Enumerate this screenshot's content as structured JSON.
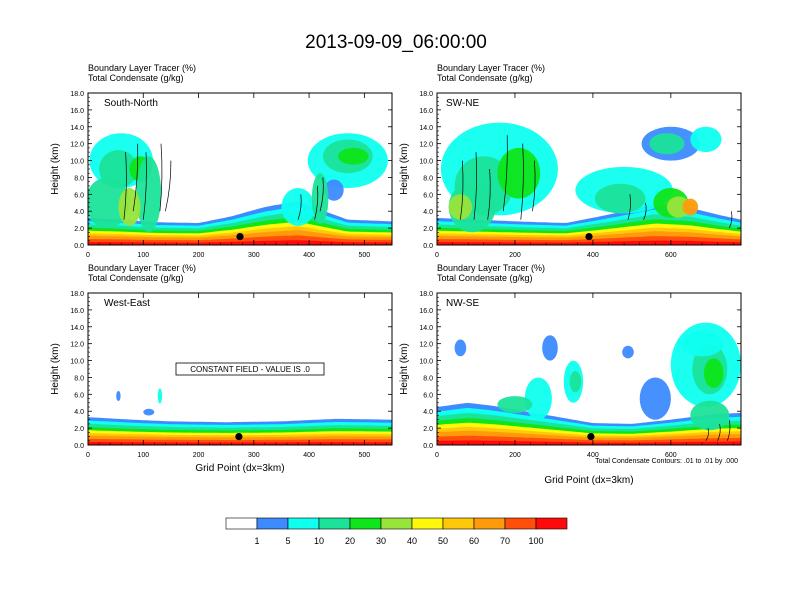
{
  "title": "2013-09-09_06:00:00",
  "colors": {
    "levels": [
      "#ffffff",
      "#3d8bff",
      "#0ffff0",
      "#1be39a",
      "#0ee51a",
      "#98e43b",
      "#fff80a",
      "#ffc80a",
      "#ff9a0a",
      "#ff4f0a",
      "#ff0a0a"
    ],
    "contour": "#000000",
    "marker": "#000000"
  },
  "colorbar": {
    "labels": [
      "1",
      "5",
      "10",
      "20",
      "30",
      "40",
      "50",
      "60",
      "70",
      "100"
    ]
  },
  "chart_data": [
    {
      "type": "heatmap",
      "subtitle_line1": "Boundary Layer Tracer   (%)",
      "subtitle_line2": "Total Condensate   (g/kg)",
      "panel_label": "South-North",
      "ylabel": "Height (km)",
      "xlabel": "",
      "ylim": [
        0,
        18
      ],
      "yticks": [
        "0.0",
        "2.0",
        "4.0",
        "6.0",
        "8.0",
        "10.0",
        "12.0",
        "14.0",
        "16.0",
        "18.0"
      ],
      "xlim": [
        0,
        550
      ],
      "xticks": [
        {
          "value": 0,
          "label": "0"
        },
        {
          "value": 100,
          "label": "100"
        },
        {
          "value": 200,
          "label": "200"
        },
        {
          "value": 300,
          "label": "300"
        },
        {
          "value": 400,
          "label": "400"
        },
        {
          "value": 500,
          "label": "500"
        }
      ],
      "marker_x": 275,
      "marker_y": 1.0,
      "pbl_top": [
        [
          0,
          3.2
        ],
        [
          60,
          3.0
        ],
        [
          120,
          2.7
        ],
        [
          200,
          2.6
        ],
        [
          260,
          3.4
        ],
        [
          320,
          4.5
        ],
        [
          380,
          5.2
        ],
        [
          420,
          4.2
        ],
        [
          470,
          3.0
        ],
        [
          550,
          2.8
        ]
      ],
      "clouds": [
        {
          "x": 60,
          "y": 10.0,
          "w": 115,
          "h": 6.5,
          "level": 2
        },
        {
          "x": 55,
          "y": 9.0,
          "w": 70,
          "h": 4.5,
          "level": 3
        },
        {
          "x": 95,
          "y": 9.0,
          "w": 40,
          "h": 3.0,
          "level": 4
        },
        {
          "x": 110,
          "y": 6.0,
          "w": 45,
          "h": 9.0,
          "level": 3
        },
        {
          "x": 35,
          "y": 5.0,
          "w": 80,
          "h": 6.0,
          "level": 3
        },
        {
          "x": 75,
          "y": 4.5,
          "w": 40,
          "h": 4.5,
          "level": 5
        },
        {
          "x": 470,
          "y": 10.0,
          "w": 145,
          "h": 6.5,
          "level": 2
        },
        {
          "x": 470,
          "y": 10.5,
          "w": 90,
          "h": 4.0,
          "level": 3
        },
        {
          "x": 480,
          "y": 10.5,
          "w": 55,
          "h": 2.0,
          "level": 4
        },
        {
          "x": 445,
          "y": 6.5,
          "w": 35,
          "h": 2.5,
          "level": 1
        },
        {
          "x": 380,
          "y": 4.5,
          "w": 60,
          "h": 4.5,
          "level": 2
        },
        {
          "x": 420,
          "y": 5.5,
          "w": 30,
          "h": 6.0,
          "level": 3
        }
      ],
      "contours": [
        [
          65,
          3
        ],
        [
          68,
          11
        ],
        [
          82,
          4
        ],
        [
          90,
          12
        ],
        [
          100,
          3
        ],
        [
          105,
          11
        ],
        [
          130,
          4
        ],
        [
          132,
          12
        ],
        [
          140,
          4
        ],
        [
          150,
          10
        ],
        [
          380,
          3
        ],
        [
          385,
          6
        ],
        [
          410,
          3
        ],
        [
          415,
          7
        ],
        [
          420,
          4
        ],
        [
          425,
          8
        ]
      ],
      "constant_field_text": ""
    },
    {
      "type": "heatmap",
      "subtitle_line1": "Boundary Layer Tracer   (%)",
      "subtitle_line2": "Total Condensate   (g/kg)",
      "panel_label": "SW-NE",
      "ylabel": "Height (km)",
      "xlabel": "",
      "ylim": [
        0,
        18
      ],
      "yticks": [
        "0.0",
        "2.0",
        "4.0",
        "6.0",
        "8.0",
        "10.0",
        "12.0",
        "14.0",
        "16.0",
        "18.0"
      ],
      "xlim": [
        0,
        780
      ],
      "xticks": [
        {
          "value": 0,
          "label": "0"
        },
        {
          "value": 200,
          "label": "200"
        },
        {
          "value": 400,
          "label": "400"
        },
        {
          "value": 600,
          "label": "600"
        }
      ],
      "marker_x": 390,
      "marker_y": 1.0,
      "pbl_top": [
        [
          0,
          3.2
        ],
        [
          100,
          3.0
        ],
        [
          200,
          2.8
        ],
        [
          330,
          2.6
        ],
        [
          420,
          3.4
        ],
        [
          500,
          4.2
        ],
        [
          560,
          4.8
        ],
        [
          650,
          4.4
        ],
        [
          720,
          3.6
        ],
        [
          780,
          3.0
        ]
      ],
      "clouds": [
        {
          "x": 160,
          "y": 9.0,
          "w": 300,
          "h": 11.0,
          "level": 2
        },
        {
          "x": 120,
          "y": 7.0,
          "w": 150,
          "h": 7.0,
          "level": 3
        },
        {
          "x": 210,
          "y": 8.5,
          "w": 110,
          "h": 6.0,
          "level": 4
        },
        {
          "x": 90,
          "y": 4.5,
          "w": 120,
          "h": 6.0,
          "level": 3
        },
        {
          "x": 60,
          "y": 4.5,
          "w": 60,
          "h": 3.0,
          "level": 5
        },
        {
          "x": 480,
          "y": 6.5,
          "w": 250,
          "h": 5.5,
          "level": 2
        },
        {
          "x": 470,
          "y": 5.5,
          "w": 130,
          "h": 3.5,
          "level": 3
        },
        {
          "x": 600,
          "y": 5.0,
          "w": 90,
          "h": 3.5,
          "level": 4
        },
        {
          "x": 620,
          "y": 4.5,
          "w": 60,
          "h": 2.5,
          "level": 5
        },
        {
          "x": 650,
          "y": 4.5,
          "w": 40,
          "h": 2.0,
          "level": 8
        },
        {
          "x": 600,
          "y": 12.0,
          "w": 150,
          "h": 4.0,
          "level": 1
        },
        {
          "x": 590,
          "y": 12.0,
          "w": 90,
          "h": 2.5,
          "level": 3
        },
        {
          "x": 690,
          "y": 12.5,
          "w": 80,
          "h": 3.0,
          "level": 2
        }
      ],
      "contours": [
        [
          60,
          3
        ],
        [
          65,
          10
        ],
        [
          95,
          3
        ],
        [
          100,
          11
        ],
        [
          130,
          3
        ],
        [
          135,
          9
        ],
        [
          170,
          4
        ],
        [
          180,
          13
        ],
        [
          215,
          3
        ],
        [
          220,
          12
        ],
        [
          245,
          4
        ],
        [
          250,
          10
        ],
        [
          490,
          3
        ],
        [
          495,
          6
        ],
        [
          530,
          3
        ],
        [
          535,
          5
        ],
        [
          750,
          2
        ],
        [
          755,
          4
        ]
      ],
      "constant_field_text": ""
    },
    {
      "type": "heatmap",
      "subtitle_line1": "Boundary Layer Tracer   (%)",
      "subtitle_line2": "Total Condensate   (g/kg)",
      "panel_label": "West-East",
      "ylabel": "Height (km)",
      "xlabel": "Grid Point (dx=3km)",
      "ylim": [
        0,
        18
      ],
      "yticks": [
        "0.0",
        "2.0",
        "4.0",
        "6.0",
        "8.0",
        "10.0",
        "12.0",
        "14.0",
        "16.0",
        "18.0"
      ],
      "xlim": [
        0,
        550
      ],
      "xticks": [
        {
          "value": 0,
          "label": "0"
        },
        {
          "value": 100,
          "label": "100"
        },
        {
          "value": 200,
          "label": "200"
        },
        {
          "value": 300,
          "label": "300"
        },
        {
          "value": 400,
          "label": "400"
        },
        {
          "value": 500,
          "label": "500"
        }
      ],
      "marker_x": 273,
      "marker_y": 1.0,
      "pbl_top": [
        [
          0,
          3.3
        ],
        [
          80,
          3.0
        ],
        [
          150,
          2.8
        ],
        [
          250,
          2.7
        ],
        [
          350,
          2.8
        ],
        [
          450,
          3.1
        ],
        [
          550,
          3.0
        ]
      ],
      "clouds": [
        {
          "x": 55,
          "y": 5.8,
          "w": 8,
          "h": 1.2,
          "level": 1
        },
        {
          "x": 130,
          "y": 5.8,
          "w": 8,
          "h": 1.8,
          "level": 2
        },
        {
          "x": 110,
          "y": 3.9,
          "w": 20,
          "h": 0.8,
          "level": 1
        }
      ],
      "contours": [],
      "constant_field_text": "CONSTANT FIELD - VALUE IS .0"
    },
    {
      "type": "heatmap",
      "subtitle_line1": "Boundary Layer Tracer   (%)",
      "subtitle_line2": "Total Condensate   (g/kg)",
      "panel_label": "NW-SE",
      "ylabel": "Height (km)",
      "xlabel": "Grid Point (dx=3km)",
      "ylim": [
        0,
        18
      ],
      "yticks": [
        "0.0",
        "2.0",
        "4.0",
        "6.0",
        "8.0",
        "10.0",
        "12.0",
        "14.0",
        "16.0",
        "18.0"
      ],
      "xlim": [
        0,
        780
      ],
      "xticks": [
        {
          "value": 0,
          "label": "0"
        },
        {
          "value": 200,
          "label": "200"
        },
        {
          "value": 400,
          "label": "400"
        },
        {
          "value": 600,
          "label": "600"
        }
      ],
      "marker_x": 395,
      "marker_y": 1.0,
      "pbl_top": [
        [
          0,
          4.5
        ],
        [
          80,
          5.0
        ],
        [
          150,
          4.6
        ],
        [
          250,
          3.8
        ],
        [
          400,
          2.6
        ],
        [
          500,
          2.5
        ],
        [
          600,
          3.0
        ],
        [
          700,
          3.6
        ],
        [
          780,
          3.8
        ]
      ],
      "clouds": [
        {
          "x": 290,
          "y": 11.5,
          "w": 40,
          "h": 3.0,
          "level": 1
        },
        {
          "x": 60,
          "y": 11.5,
          "w": 30,
          "h": 2.0,
          "level": 1
        },
        {
          "x": 350,
          "y": 7.5,
          "w": 50,
          "h": 5.0,
          "level": 2
        },
        {
          "x": 355,
          "y": 7.5,
          "w": 30,
          "h": 2.5,
          "level": 3
        },
        {
          "x": 260,
          "y": 5.5,
          "w": 70,
          "h": 5.0,
          "level": 2
        },
        {
          "x": 560,
          "y": 5.5,
          "w": 80,
          "h": 5.0,
          "level": 1
        },
        {
          "x": 690,
          "y": 9.5,
          "w": 180,
          "h": 10.0,
          "level": 2
        },
        {
          "x": 700,
          "y": 9.0,
          "w": 90,
          "h": 6.0,
          "level": 3
        },
        {
          "x": 710,
          "y": 8.5,
          "w": 50,
          "h": 3.5,
          "level": 4
        },
        {
          "x": 680,
          "y": 12.0,
          "w": 110,
          "h": 3.0,
          "level": 2
        },
        {
          "x": 700,
          "y": 3.5,
          "w": 100,
          "h": 3.5,
          "level": 3
        },
        {
          "x": 200,
          "y": 4.8,
          "w": 90,
          "h": 2.0,
          "level": 3
        },
        {
          "x": 490,
          "y": 11.0,
          "w": 30,
          "h": 1.5,
          "level": 1
        }
      ],
      "contours": [
        [
          690,
          0.5
        ],
        [
          695,
          2
        ],
        [
          720,
          0.5
        ],
        [
          725,
          2.5
        ],
        [
          745,
          0.5
        ],
        [
          750,
          3
        ]
      ],
      "constant_field_text": ""
    }
  ],
  "contour_note": "Total Condensate Contours: .01 to .01 by .000"
}
